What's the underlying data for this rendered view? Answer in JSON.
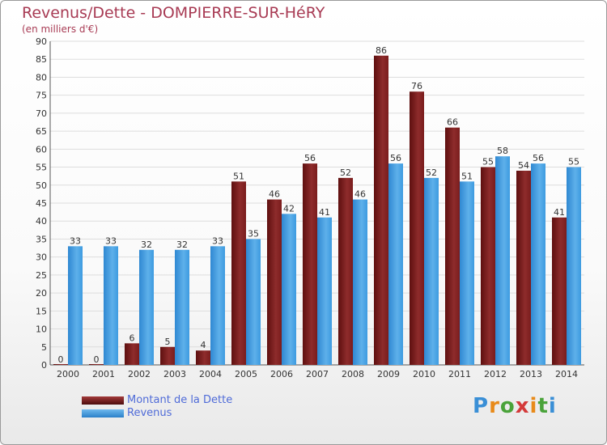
{
  "chart_data": {
    "type": "bar",
    "title": "Revenus/Dette - DOMPIERRE-SUR-HéRY",
    "subtitle": "(en milliers d'€)",
    "categories": [
      "2000",
      "2001",
      "2002",
      "2003",
      "2004",
      "2005",
      "2006",
      "2007",
      "2008",
      "2009",
      "2010",
      "2011",
      "2012",
      "2013",
      "2014"
    ],
    "series": [
      {
        "name": "Montant de la Dette",
        "color": "#7a1c1c",
        "values": [
          0,
          0,
          6,
          5,
          4,
          51,
          46,
          56,
          52,
          86,
          76,
          66,
          55,
          54,
          41
        ]
      },
      {
        "name": "Revenus",
        "color": "#3d9be0",
        "values": [
          33,
          33,
          32,
          32,
          33,
          35,
          42,
          41,
          46,
          56,
          52,
          51,
          58,
          56,
          55
        ]
      }
    ],
    "ylim": [
      0,
      90
    ],
    "yticks": [
      0,
      5,
      10,
      15,
      20,
      25,
      30,
      35,
      40,
      45,
      50,
      55,
      60,
      65,
      70,
      75,
      80,
      85,
      90
    ],
    "grid": true,
    "legend_position": "bottom-left"
  },
  "branding": {
    "logo_letters": [
      "P",
      "r",
      "o",
      "x",
      "i",
      "t",
      "i"
    ]
  }
}
